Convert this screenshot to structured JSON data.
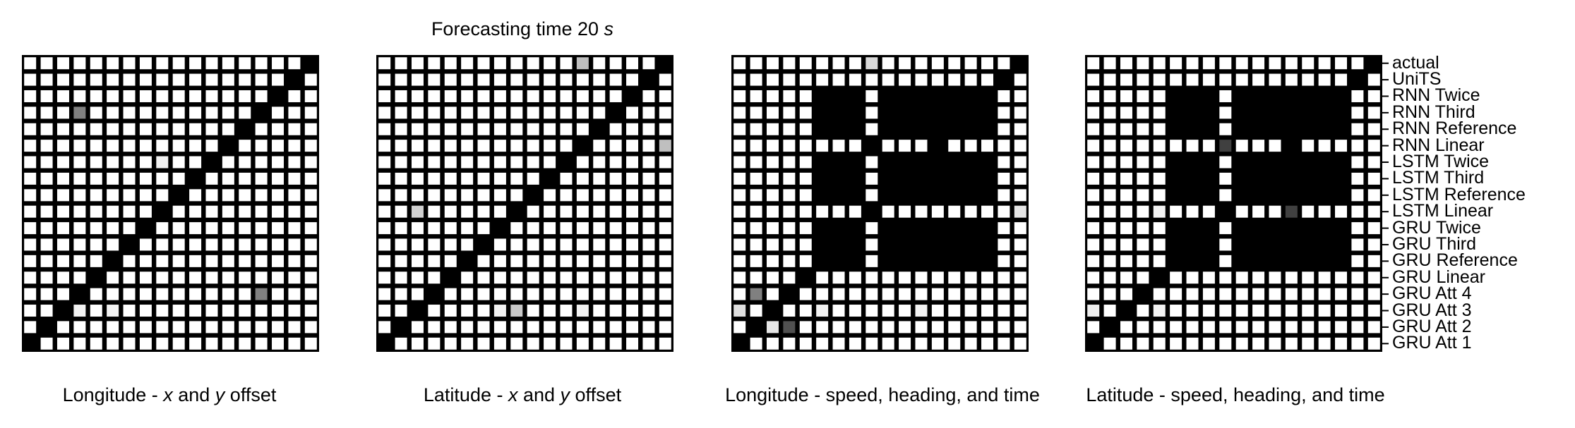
{
  "figure": {
    "title_prefix": "Forecasting time 20 ",
    "title_unit": "s"
  },
  "row_labels": [
    "actual",
    "UniTS",
    "RNN Twice",
    "RNN Third",
    "RNN Reference",
    "RNN Linear",
    "LSTM Twice",
    "LSTM Third",
    "LSTM Reference",
    "LSTM Linear",
    "GRU Twice",
    "GRU Third",
    "GRU Reference",
    "GRU Linear",
    "GRU Att 4",
    "GRU Att 3",
    "GRU Att 2",
    "GRU Att 1"
  ],
  "chart_data": [
    {
      "type": "heatmap",
      "label_parts": [
        "Longitude - ",
        "x",
        " and ",
        "y",
        " offset"
      ],
      "size": 18,
      "black_blocks": [],
      "special_cells": [
        {
          "row": 3,
          "col": 3,
          "color": "#808080"
        },
        {
          "row": 14,
          "col": 14,
          "color": "#808080"
        },
        {
          "row": 6,
          "col": 8,
          "color": "#f2f2f2"
        },
        {
          "row": 15,
          "col": 3,
          "color": "#f2f2f2"
        },
        {
          "row": 15,
          "col": 5,
          "color": "#f2f2f2"
        }
      ]
    },
    {
      "type": "heatmap",
      "label_parts": [
        "Latitude - ",
        "x",
        " and ",
        "y",
        " offset"
      ],
      "size": 18,
      "black_blocks": [],
      "special_cells": [
        {
          "row": 0,
          "col": 12,
          "color": "#bfbfbf"
        },
        {
          "row": 5,
          "col": 17,
          "color": "#bfbfbf"
        },
        {
          "row": 9,
          "col": 2,
          "color": "#d0d0d0"
        },
        {
          "row": 15,
          "col": 8,
          "color": "#c8c8c8"
        },
        {
          "row": 15,
          "col": 7,
          "color": "#f2f2f2"
        },
        {
          "row": 15,
          "col": 12,
          "color": "#f2f2f2"
        }
      ]
    },
    {
      "type": "heatmap",
      "label_parts": [
        "Longitude - speed, heading, and time"
      ],
      "size": 18,
      "black_blocks": [
        [
          2,
          4,
          5,
          7
        ],
        [
          2,
          4,
          9,
          12
        ],
        [
          2,
          4,
          13,
          15
        ],
        [
          6,
          8,
          5,
          7
        ],
        [
          6,
          8,
          9,
          12
        ],
        [
          6,
          8,
          13,
          15
        ],
        [
          10,
          12,
          5,
          7
        ],
        [
          10,
          12,
          9,
          12
        ],
        [
          10,
          12,
          13,
          15
        ],
        [
          5,
          5,
          8,
          8
        ],
        [
          9,
          9,
          8,
          8
        ]
      ],
      "special_cells": [
        {
          "row": 0,
          "col": 8,
          "color": "#d9d9d9"
        },
        {
          "row": 14,
          "col": 1,
          "color": "#808080"
        },
        {
          "row": 15,
          "col": 0,
          "color": "#e0e0e0"
        },
        {
          "row": 16,
          "col": 2,
          "color": "#e6e6e6"
        },
        {
          "row": 16,
          "col": 3,
          "color": "#505050"
        },
        {
          "row": 9,
          "col": 17,
          "color": "#e6e6e6"
        },
        {
          "row": 15,
          "col": 5,
          "color": "#f2f2f2"
        },
        {
          "row": 15,
          "col": 11,
          "color": "#f2f2f2"
        }
      ]
    },
    {
      "type": "heatmap",
      "label_parts": [
        "Latitude - speed, heading, and time"
      ],
      "size": 18,
      "black_blocks": [
        [
          2,
          4,
          5,
          7
        ],
        [
          2,
          4,
          9,
          12
        ],
        [
          2,
          4,
          13,
          15
        ],
        [
          6,
          8,
          5,
          7
        ],
        [
          6,
          8,
          9,
          12
        ],
        [
          6,
          8,
          13,
          15
        ],
        [
          10,
          12,
          5,
          7
        ],
        [
          10,
          12,
          9,
          12
        ],
        [
          10,
          12,
          13,
          15
        ],
        [
          9,
          9,
          8,
          8
        ]
      ],
      "special_cells": [
        {
          "row": 5,
          "col": 8,
          "color": "#404040"
        },
        {
          "row": 9,
          "col": 12,
          "color": "#404040"
        },
        {
          "row": 9,
          "col": 4,
          "color": "#f2f2f2"
        },
        {
          "row": 15,
          "col": 0,
          "color": "#ededed"
        },
        {
          "row": 15,
          "col": 4,
          "color": "#f2f2f2"
        }
      ]
    }
  ]
}
